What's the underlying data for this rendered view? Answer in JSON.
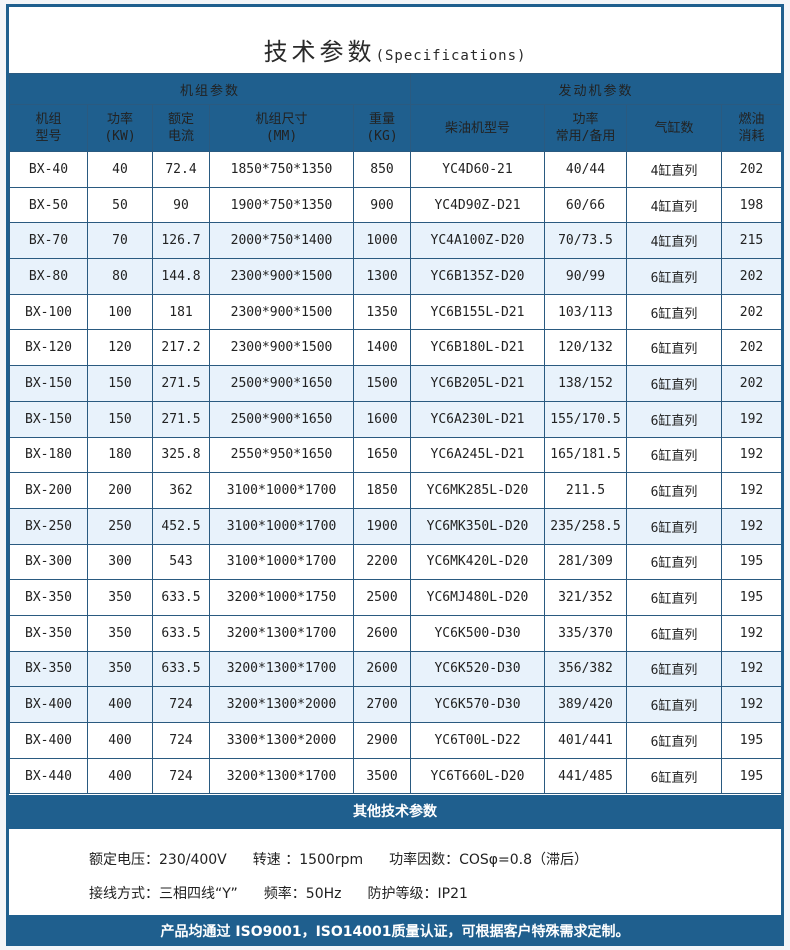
{
  "title": {
    "zh": "技术参数",
    "en": "(Specifications)"
  },
  "groups": {
    "unit": "机组参数",
    "engine": "发动机参数"
  },
  "headers": [
    [
      "机组",
      "型号"
    ],
    [
      "功率",
      "(KW)"
    ],
    [
      "额定",
      "电流"
    ],
    [
      "机组尺寸",
      "(MM)"
    ],
    [
      "重量",
      "(KG)"
    ],
    [
      "柴油机型号"
    ],
    [
      "功率",
      "常用/备用"
    ],
    [
      "气缸数"
    ],
    [
      "燃油",
      "消耗"
    ]
  ],
  "rows": [
    [
      "BX-40",
      "40",
      "72.4",
      "1850*750*1350",
      "850",
      "YC4D60-21",
      "40/44",
      "4缸直列",
      "202"
    ],
    [
      "BX-50",
      "50",
      "90",
      "1900*750*1350",
      "900",
      "YC4D90Z-D21",
      "60/66",
      "4缸直列",
      "198"
    ],
    [
      "BX-70",
      "70",
      "126.7",
      "2000*750*1400",
      "1000",
      "YC4A100Z-D20",
      "70/73.5",
      "4缸直列",
      "215"
    ],
    [
      "BX-80",
      "80",
      "144.8",
      "2300*900*1500",
      "1300",
      "YC6B135Z-D20",
      "90/99",
      "6缸直列",
      "202"
    ],
    [
      "BX-100",
      "100",
      "181",
      "2300*900*1500",
      "1350",
      "YC6B155L-D21",
      "103/113",
      "6缸直列",
      "202"
    ],
    [
      "BX-120",
      "120",
      "217.2",
      "2300*900*1500",
      "1400",
      "YC6B180L-D21",
      "120/132",
      "6缸直列",
      "202"
    ],
    [
      "BX-150",
      "150",
      "271.5",
      "2500*900*1650",
      "1500",
      "YC6B205L-D21",
      "138/152",
      "6缸直列",
      "202"
    ],
    [
      "BX-150",
      "150",
      "271.5",
      "2500*900*1650",
      "1600",
      "YC6A230L-D21",
      "155/170.5",
      "6缸直列",
      "192"
    ],
    [
      "BX-180",
      "180",
      "325.8",
      "2550*950*1650",
      "1650",
      "YC6A245L-D21",
      "165/181.5",
      "6缸直列",
      "192"
    ],
    [
      "BX-200",
      "200",
      "362",
      "3100*1000*1700",
      "1850",
      "YC6MK285L-D20",
      "211.5",
      "6缸直列",
      "192"
    ],
    [
      "BX-250",
      "250",
      "452.5",
      "3100*1000*1700",
      "1900",
      "YC6MK350L-D20",
      "235/258.5",
      "6缸直列",
      "192"
    ],
    [
      "BX-300",
      "300",
      "543",
      "3100*1000*1700",
      "2200",
      "YC6MK420L-D20",
      "281/309",
      "6缸直列",
      "195"
    ],
    [
      "BX-350",
      "350",
      "633.5",
      "3200*1000*1750",
      "2500",
      "YC6MJ480L-D20",
      "321/352",
      "6缸直列",
      "195"
    ],
    [
      "BX-350",
      "350",
      "633.5",
      "3200*1300*1700",
      "2600",
      "YC6K500-D30",
      "335/370",
      "6缸直列",
      "192"
    ],
    [
      "BX-350",
      "350",
      "633.5",
      "3200*1300*1700",
      "2600",
      "YC6K520-D30",
      "356/382",
      "6缸直列",
      "192"
    ],
    [
      "BX-400",
      "400",
      "724",
      "3200*1300*2000",
      "2700",
      "YC6K570-D30",
      "389/420",
      "6缸直列",
      "192"
    ],
    [
      "BX-400",
      "400",
      "724",
      "3300*1300*2000",
      "2900",
      "YC6T00L-D22",
      "401/441",
      "6缸直列",
      "195"
    ],
    [
      "BX-440",
      "400",
      "724",
      "3200*1300*1700",
      "3500",
      "YC6T660L-D20",
      "441/485",
      "6缸直列",
      "195"
    ]
  ],
  "shaded_rows": [
    2,
    3,
    6,
    7,
    10,
    14,
    15
  ],
  "other": {
    "title": "其他技术参数",
    "voltage": "额定电压：230/400V",
    "speed": "转速 ：1500rpm",
    "power_factor": "功率因数：COSφ=0.8（滞后）",
    "wiring": "接线方式：三相四线“Y”",
    "frequency": "频率：50Hz",
    "protection": "防护等级：IP21"
  },
  "footer": "产品均通过 ISO9001，ISO14001质量认证，可根据客户特殊需求定制。"
}
